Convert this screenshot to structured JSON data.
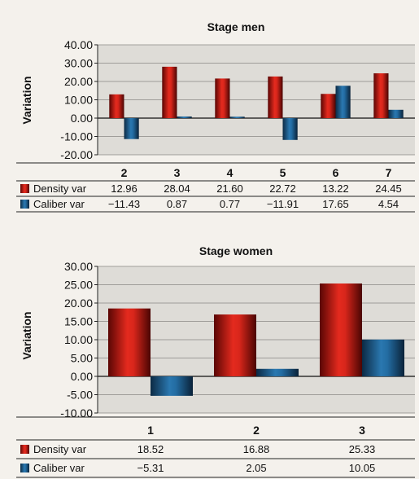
{
  "chart_data": [
    {
      "type": "bar",
      "title": "Stage men",
      "ylabel": "Variation",
      "xlabel": "",
      "categories": [
        "2",
        "3",
        "4",
        "5",
        "6",
        "7"
      ],
      "series": [
        {
          "name": "Density var",
          "values": [
            12.96,
            28.04,
            21.6,
            22.72,
            13.22,
            24.45
          ],
          "labels": [
            "12.96",
            "28.04",
            "21.60",
            "22.72",
            "13.22",
            "24.45"
          ],
          "color": "#c0231c"
        },
        {
          "name": "Caliber var",
          "values": [
            -11.43,
            0.87,
            0.77,
            -11.91,
            17.65,
            4.54
          ],
          "labels": [
            "−11.43",
            "0.87",
            "0.77",
            "−11.91",
            "17.65",
            "4.54"
          ],
          "color": "#1f5f8f"
        }
      ],
      "ylim": [
        -20,
        40
      ],
      "yticks": [
        "40.00",
        "30.00",
        "20.00",
        "10.00",
        "0.00",
        "-10.00",
        "-20.00"
      ],
      "grid": true,
      "legend": "data-table-below"
    },
    {
      "type": "bar",
      "title": "Stage women",
      "ylabel": "Variation",
      "xlabel": "",
      "categories": [
        "1",
        "2",
        "3"
      ],
      "series": [
        {
          "name": "Density var",
          "values": [
            18.52,
            16.88,
            25.33
          ],
          "labels": [
            "18.52",
            "16.88",
            "25.33"
          ],
          "color": "#c0231c"
        },
        {
          "name": "Caliber var",
          "values": [
            -5.31,
            2.05,
            10.05
          ],
          "labels": [
            "−5.31",
            "2.05",
            "10.05"
          ],
          "color": "#1f5f8f"
        }
      ],
      "ylim": [
        -10,
        30
      ],
      "yticks": [
        "30.00",
        "25.00",
        "20.00",
        "15.00",
        "10.00",
        "5.00",
        "0.00",
        "-5.00",
        "-10.00"
      ],
      "grid": true,
      "legend": "data-table-below"
    }
  ]
}
